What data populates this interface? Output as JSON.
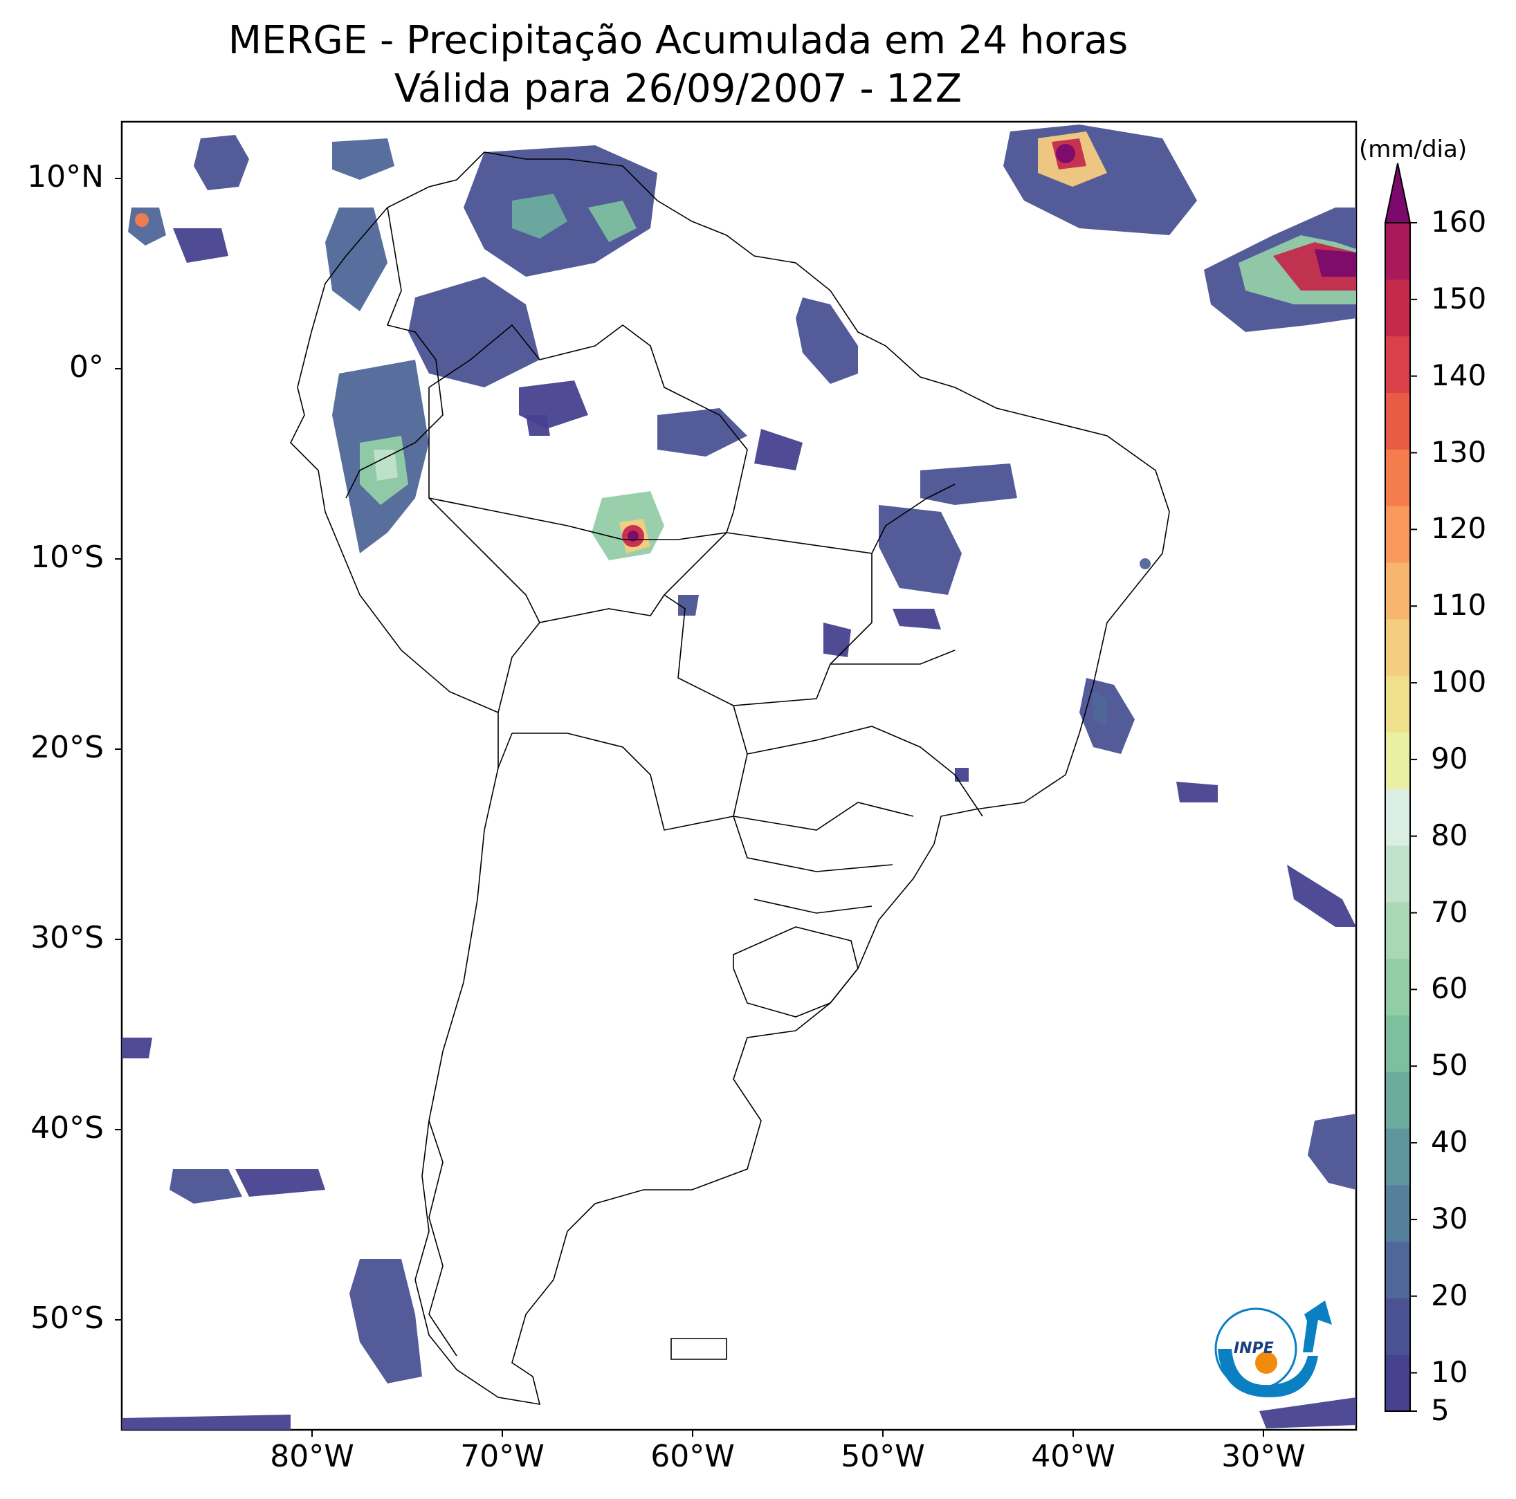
{
  "title": {
    "line1": "MERGE - Precipitação Acumulada em 24 horas",
    "line2": "Válida para 26/09/2007 - 12Z"
  },
  "axes": {
    "lat_ticks": [
      "10°N",
      "0°",
      "10°S",
      "20°S",
      "30°S",
      "40°S",
      "50°S"
    ],
    "lon_ticks": [
      "80°W",
      "70°W",
      "60°W",
      "50°W",
      "40°W",
      "30°W"
    ],
    "lat_values": [
      10,
      0,
      -10,
      -20,
      -30,
      -40,
      -50
    ],
    "lon_values": [
      -80,
      -70,
      -60,
      -50,
      -40,
      -30
    ],
    "lon_range": [
      -90,
      -25
    ],
    "lat_range": [
      -56,
      13
    ]
  },
  "colorbar": {
    "unit": "(mm/dia)",
    "tick_labels": [
      "5",
      "10",
      "20",
      "30",
      "40",
      "50",
      "60",
      "70",
      "80",
      "90",
      "100",
      "110",
      "120",
      "130",
      "140",
      "150",
      "160"
    ],
    "tick_values": [
      5,
      10,
      20,
      30,
      40,
      50,
      60,
      70,
      80,
      90,
      100,
      110,
      120,
      130,
      140,
      150,
      160
    ],
    "extend": "max",
    "colors": [
      "#46418f",
      "#4a5294",
      "#4f6799",
      "#567f9c",
      "#5f969d",
      "#6bac9e",
      "#7dc09f",
      "#93cda6",
      "#a9d8b5",
      "#c1e3cb",
      "#dbeee3",
      "#e9f0a4",
      "#efe08c",
      "#f5cd7f",
      "#f8b56d",
      "#f99a5c",
      "#f57c4c",
      "#e85b45",
      "#d9404a",
      "#c42a4c",
      "#a81a5a",
      "#7b0a6c"
    ]
  },
  "logo": {
    "text": "INPE",
    "accent": "#0a7fc2",
    "dot": "#f18b0b"
  }
}
